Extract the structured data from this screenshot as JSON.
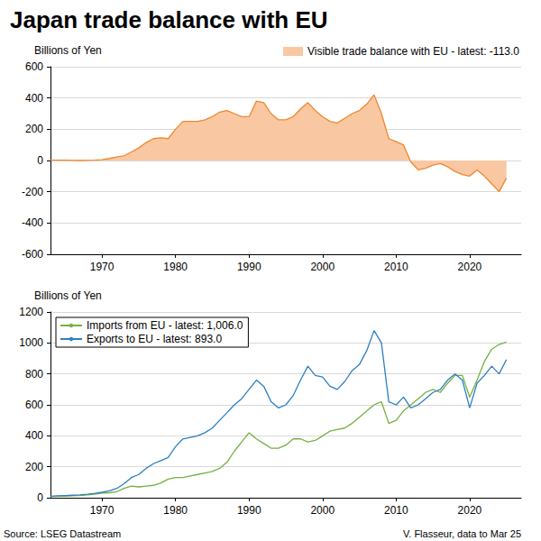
{
  "title": "Japan trade balance with EU",
  "source": "Source: LSEG Datastream",
  "credit": "V. Flasseur, data to Mar 25",
  "chart_data": [
    {
      "type": "area",
      "y_label": "Billions of Yen",
      "x": [
        1963,
        1964,
        1965,
        1966,
        1967,
        1968,
        1969,
        1970,
        1971,
        1972,
        1973,
        1974,
        1975,
        1976,
        1977,
        1978,
        1979,
        1980,
        1981,
        1982,
        1983,
        1984,
        1985,
        1986,
        1987,
        1988,
        1989,
        1990,
        1991,
        1992,
        1993,
        1994,
        1995,
        1996,
        1997,
        1998,
        1999,
        2000,
        2001,
        2002,
        2003,
        2004,
        2005,
        2006,
        2007,
        2008,
        2009,
        2010,
        2011,
        2012,
        2013,
        2014,
        2015,
        2016,
        2017,
        2018,
        2019,
        2020,
        2021,
        2022,
        2023,
        2024,
        2025
      ],
      "series": [
        {
          "name": "Visible trade balance with EU - latest: -113.0",
          "color": "#f0872d",
          "fill_color": "#f9c8a2",
          "values": [
            2,
            2,
            2,
            1,
            0,
            1,
            2,
            5,
            13,
            22,
            30,
            55,
            80,
            115,
            140,
            145,
            140,
            200,
            250,
            250,
            250,
            260,
            280,
            310,
            320,
            300,
            280,
            280,
            380,
            370,
            300,
            260,
            260,
            280,
            330,
            370,
            320,
            280,
            250,
            240,
            270,
            300,
            320,
            360,
            420,
            300,
            140,
            120,
            100,
            -10,
            -60,
            -50,
            -30,
            -20,
            -40,
            -70,
            -90,
            -100,
            -60,
            -100,
            -150,
            -200,
            -113
          ]
        }
      ],
      "xlim": [
        1963,
        2027
      ],
      "xticks": [
        1970,
        1980,
        1990,
        2000,
        2010,
        2020
      ],
      "ylim": [
        -600,
        600
      ],
      "yticks": [
        -600,
        -400,
        -200,
        0,
        200,
        400,
        600
      ],
      "grid": true,
      "legend": "upper right"
    },
    {
      "type": "line",
      "y_label": "Billions of Yen",
      "x": [
        1963,
        1964,
        1965,
        1966,
        1967,
        1968,
        1969,
        1970,
        1971,
        1972,
        1973,
        1974,
        1975,
        1976,
        1977,
        1978,
        1979,
        1980,
        1981,
        1982,
        1983,
        1984,
        1985,
        1986,
        1987,
        1988,
        1989,
        1990,
        1991,
        1992,
        1993,
        1994,
        1995,
        1996,
        1997,
        1998,
        1999,
        2000,
        2001,
        2002,
        2003,
        2004,
        2005,
        2006,
        2007,
        2008,
        2009,
        2010,
        2011,
        2012,
        2013,
        2014,
        2015,
        2016,
        2017,
        2018,
        2019,
        2020,
        2021,
        2022,
        2023,
        2024,
        2025
      ],
      "series": [
        {
          "name": "Imports from EU - latest: 1,006.0",
          "color": "#76b041",
          "values": [
            8,
            9,
            10,
            12,
            14,
            18,
            22,
            30,
            32,
            38,
            60,
            75,
            70,
            75,
            80,
            95,
            120,
            130,
            130,
            140,
            150,
            160,
            170,
            190,
            230,
            300,
            360,
            420,
            380,
            350,
            320,
            320,
            340,
            380,
            380,
            360,
            370,
            400,
            430,
            440,
            450,
            480,
            520,
            560,
            600,
            620,
            480,
            500,
            560,
            600,
            640,
            680,
            700,
            680,
            740,
            790,
            790,
            650,
            760,
            880,
            960,
            990,
            1006
          ]
        },
        {
          "name": "Exports to EU - latest: 893.0",
          "color": "#2d7fc1",
          "values": [
            10,
            12,
            14,
            16,
            18,
            22,
            28,
            35,
            45,
            60,
            90,
            130,
            150,
            190,
            220,
            240,
            260,
            330,
            380,
            390,
            400,
            420,
            450,
            500,
            550,
            600,
            640,
            700,
            760,
            720,
            620,
            580,
            600,
            660,
            760,
            850,
            790,
            780,
            720,
            700,
            750,
            820,
            860,
            950,
            1080,
            1000,
            620,
            600,
            650,
            580,
            600,
            640,
            680,
            700,
            760,
            800,
            760,
            580,
            740,
            790,
            850,
            800,
            893
          ]
        }
      ],
      "xlim": [
        1963,
        2027
      ],
      "xticks": [
        1970,
        1980,
        1990,
        2000,
        2010,
        2020
      ],
      "ylim": [
        0,
        1200
      ],
      "yticks": [
        0,
        200,
        400,
        600,
        800,
        1000,
        1200
      ],
      "grid": true,
      "legend": "upper left"
    }
  ]
}
